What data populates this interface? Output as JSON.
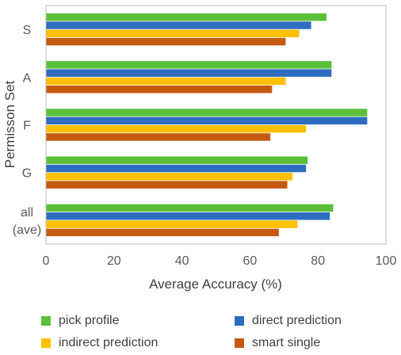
{
  "chart_data": {
    "type": "bar",
    "orientation": "horizontal",
    "title": "",
    "xlabel": "Average Accuracy (%)",
    "ylabel": "Permisson Set",
    "xlim": [
      0,
      100
    ],
    "xticks": [
      0,
      20,
      40,
      60,
      80,
      100
    ],
    "grid": false,
    "legend_position": "bottom",
    "categories": [
      "S",
      "A",
      "F",
      "G",
      "all\n(ave)"
    ],
    "series": [
      {
        "name": "pick profile",
        "color": "#5bbf3a",
        "values": [
          82.5,
          84,
          94.5,
          77,
          84.5
        ]
      },
      {
        "name": "direct prediction",
        "color": "#2e6dbf",
        "values": [
          78,
          84,
          94.5,
          76.5,
          83.5
        ]
      },
      {
        "name": "indirect prediction",
        "color": "#ffc000",
        "values": [
          74.5,
          70.5,
          76.5,
          72.5,
          74
        ]
      },
      {
        "name": "smart single",
        "color": "#c55a11",
        "values": [
          70.5,
          66.5,
          66,
          71,
          68.5
        ]
      }
    ]
  }
}
